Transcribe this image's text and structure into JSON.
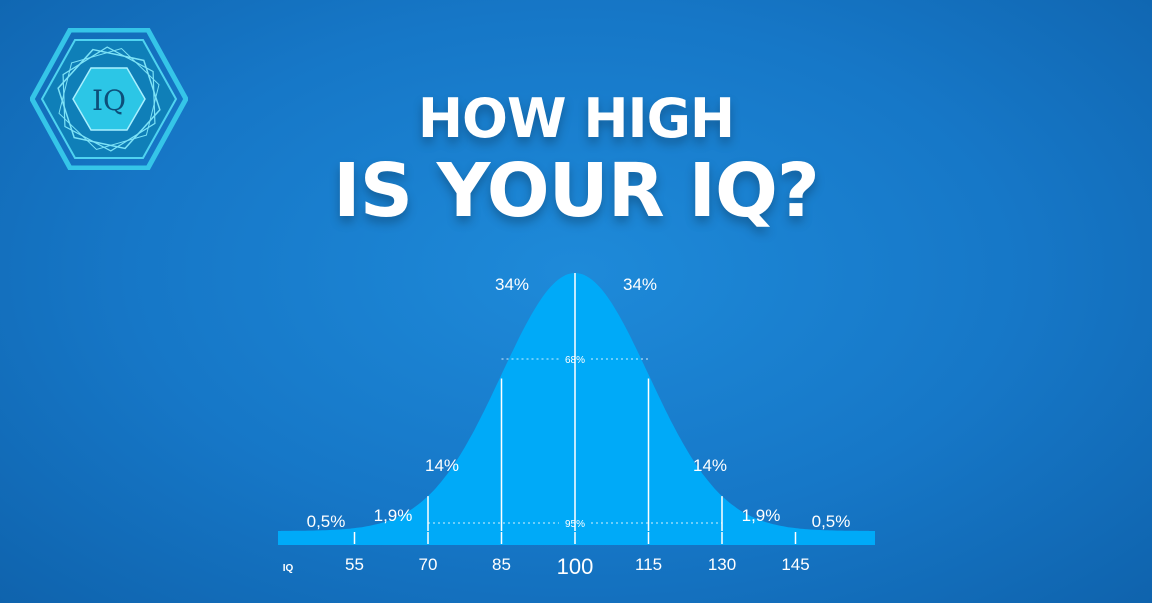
{
  "logo": {
    "text": "IQ"
  },
  "title": {
    "line1": "HOW HIGH",
    "line2": "IS YOUR IQ?"
  },
  "chart_data": {
    "type": "area",
    "xlabel": "IQ",
    "x_ticks": [
      55,
      70,
      85,
      100,
      115,
      130,
      145
    ],
    "xlim": [
      40,
      160
    ],
    "distribution": {
      "mean": 100,
      "sd": 15
    },
    "segments": [
      {
        "from": 40,
        "to": 55,
        "label": "0,5%"
      },
      {
        "from": 55,
        "to": 70,
        "label": "1,9%"
      },
      {
        "from": 70,
        "to": 85,
        "label": "14%"
      },
      {
        "from": 85,
        "to": 100,
        "label": "34%"
      },
      {
        "from": 100,
        "to": 115,
        "label": "34%"
      },
      {
        "from": 115,
        "to": 130,
        "label": "14%"
      },
      {
        "from": 130,
        "to": 145,
        "label": "1,9%"
      },
      {
        "from": 145,
        "to": 160,
        "label": "0,5%"
      }
    ],
    "ranges": [
      {
        "from": 85,
        "to": 115,
        "label": "68%"
      },
      {
        "from": 70,
        "to": 130,
        "label": "95%"
      }
    ],
    "colors": {
      "curve": "#00aaf8",
      "baseline": "#00aaf8",
      "text": "#ffffff"
    }
  }
}
